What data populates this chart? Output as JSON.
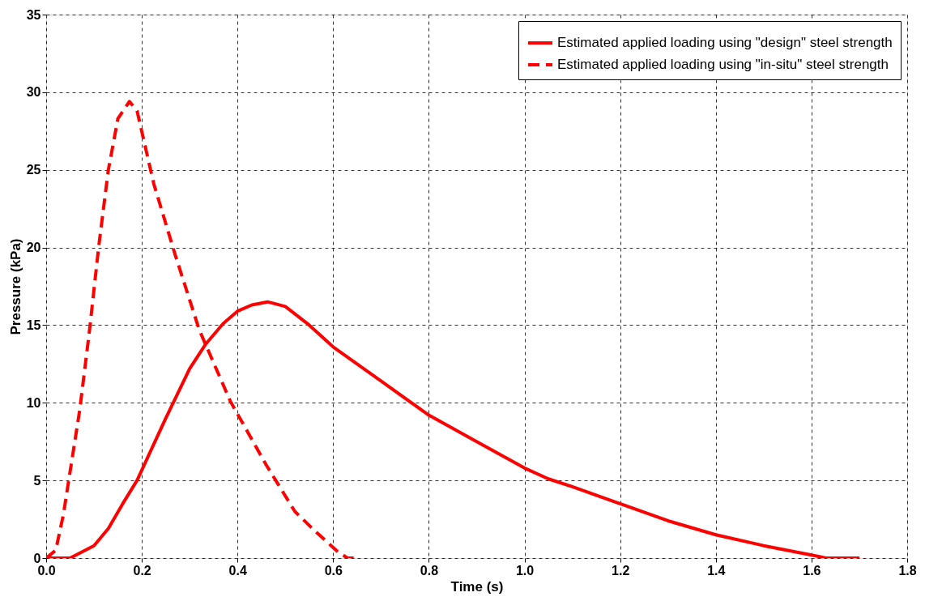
{
  "chart_data": {
    "type": "line",
    "xlabel": "Time (s)",
    "ylabel": "Pressure (kPa)",
    "xlim": [
      0,
      1.8
    ],
    "ylim": [
      0,
      35
    ],
    "xticks": [
      {
        "value": 0,
        "label": "0.0"
      },
      {
        "value": 0.2,
        "label": "0.2"
      },
      {
        "value": 0.4,
        "label": "0.4"
      },
      {
        "value": 0.6,
        "label": "0.6"
      },
      {
        "value": 0.8,
        "label": "0.8"
      },
      {
        "value": 1,
        "label": "1.0"
      },
      {
        "value": 1.2,
        "label": "1.2"
      },
      {
        "value": 1.4,
        "label": "1.4"
      },
      {
        "value": 1.6,
        "label": "1.6"
      },
      {
        "value": 1.8,
        "label": "1.8"
      }
    ],
    "yticks": [
      0,
      5,
      10,
      15,
      20,
      25,
      30,
      35
    ],
    "grid": true,
    "legend": "top right",
    "marker": "none",
    "series": [
      {
        "name": "Estimated applied loading using \"design\" steel strength",
        "color": "#ff0000",
        "line_style": "solid",
        "x": [
          0,
          0.05,
          0.1,
          0.13,
          0.16,
          0.19,
          0.25,
          0.3,
          0.334,
          0.37,
          0.4,
          0.43,
          0.463,
          0.5,
          0.55,
          0.6,
          0.65,
          0.7,
          0.8,
          0.9,
          1.0,
          1.05,
          1.1,
          1.2,
          1.3,
          1.4,
          1.5,
          1.6,
          1.63,
          1.7
        ],
        "values": [
          0,
          0,
          0.8,
          1.9,
          3.5,
          5,
          9,
          12.2,
          13.8,
          15.1,
          15.9,
          16.3,
          16.5,
          16.2,
          15,
          13.6,
          12.5,
          11.4,
          9.2,
          7.5,
          5.8,
          5.1,
          4.6,
          3.5,
          2.4,
          1.5,
          0.8,
          0.2,
          0,
          0
        ]
      },
      {
        "name": "Estimated applied loading using \"in-situ\" steel strength",
        "color": "#ff0000",
        "line_style": "dashed",
        "x": [
          0,
          0.02,
          0.036,
          0.07,
          0.09,
          0.11,
          0.13,
          0.15,
          0.174,
          0.19,
          0.225,
          0.27,
          0.32,
          0.385,
          0.46,
          0.52,
          0.56,
          0.61,
          0.63,
          0.65
        ],
        "values": [
          0,
          0.5,
          2.8,
          9.5,
          14.5,
          20.1,
          25,
          28.3,
          29.4,
          28.8,
          24.1,
          19.5,
          14.7,
          10.1,
          6,
          3,
          1.8,
          0.4,
          0,
          0
        ]
      }
    ]
  }
}
